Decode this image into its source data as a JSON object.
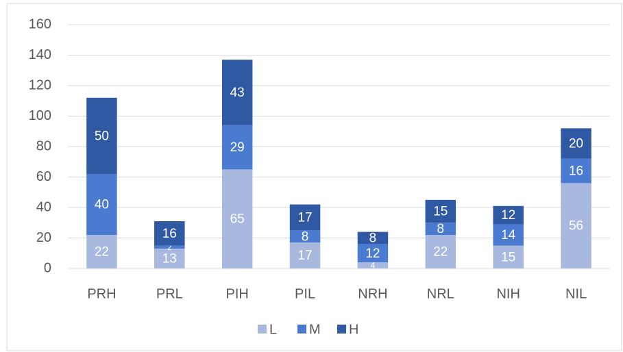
{
  "chart_data": {
    "type": "stacked_bar",
    "categories": [
      "PRH",
      "PRL",
      "PIH",
      "PIL",
      "NRH",
      "NRL",
      "NIH",
      "NIL"
    ],
    "series": [
      {
        "name": "L",
        "color": "#a9b8df",
        "values": [
          22,
          13,
          65,
          17,
          4,
          22,
          15,
          56
        ]
      },
      {
        "name": "M",
        "color": "#4a7bd0",
        "values": [
          40,
          2,
          29,
          8,
          12,
          8,
          14,
          16
        ]
      },
      {
        "name": "H",
        "color": "#2f5aa3",
        "values": [
          50,
          16,
          43,
          17,
          8,
          15,
          12,
          20
        ]
      }
    ],
    "ylim": [
      0,
      160
    ],
    "yticks": [
      0,
      20,
      40,
      60,
      80,
      100,
      120,
      140,
      160
    ],
    "grid": true,
    "legend": "bottom"
  }
}
